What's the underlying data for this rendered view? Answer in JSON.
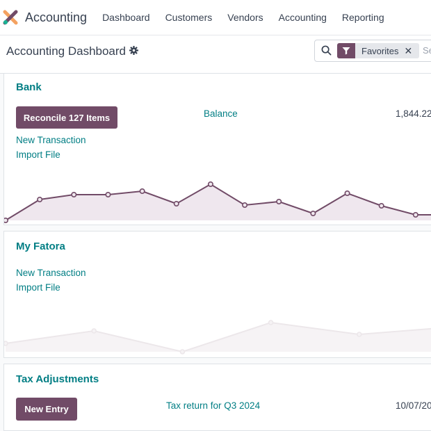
{
  "app": {
    "title": "Accounting"
  },
  "nav": [
    "Dashboard",
    "Customers",
    "Vendors",
    "Accounting",
    "Reporting"
  ],
  "page": {
    "title": "Accounting Dashboard"
  },
  "search": {
    "facet": "Favorites",
    "placeholder": "Se"
  },
  "journals": [
    {
      "name": "Bank",
      "action_button": "Reconcile 127 Items",
      "links": [
        "New Transaction",
        "Import File"
      ],
      "balance_label": "Balance",
      "balance_value": "1,844.22",
      "graph": {
        "values": [
          0,
          30,
          37,
          37,
          42,
          24,
          52,
          22,
          27,
          10,
          39,
          21,
          8,
          8
        ],
        "color": "#714b67",
        "fill": "#efe7ee"
      }
    },
    {
      "name": "My Fatora",
      "links": [
        "New Transaction",
        "Import File"
      ],
      "graph": {
        "values": [
          12,
          30,
          0,
          42,
          25,
          35
        ],
        "color": "#ece7ea",
        "fill": "#f6f3f5"
      }
    },
    {
      "name": "Tax Adjustments",
      "action_button": "New Entry",
      "entry_label": "Tax return for Q3 2024",
      "entry_date": "10/07/20"
    }
  ]
}
